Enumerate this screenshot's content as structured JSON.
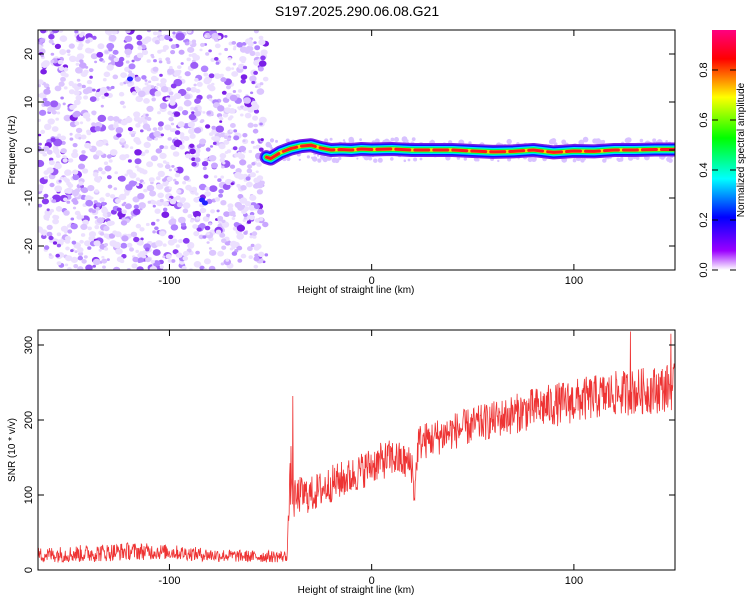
{
  "chart_data": [
    {
      "type": "heatmap",
      "title": "S197.2025.290.06.08.G21",
      "xlabel": "Height of straight line (km)",
      "ylabel": "Frequency (Hz)",
      "xlim": [
        -165,
        150
      ],
      "ylim": [
        -25,
        25
      ],
      "xticks": [
        -100,
        0,
        100
      ],
      "yticks": [
        -20,
        -10,
        0,
        10,
        20
      ],
      "noise_region_x": [
        -165,
        -52
      ],
      "signal_track": {
        "x": [
          -52,
          -50,
          -45,
          -40,
          -35,
          -30,
          -25,
          -20,
          -15,
          -10,
          -5,
          0,
          10,
          20,
          30,
          40,
          50,
          60,
          70,
          80,
          90,
          100,
          110,
          120,
          130,
          140,
          150
        ],
        "freq": [
          -1.5,
          -1.8,
          -0.5,
          0.3,
          0.8,
          1.0,
          0.4,
          0.0,
          0.1,
          0.0,
          0.2,
          0.1,
          0.2,
          0.0,
          0.0,
          0.0,
          -0.2,
          -0.4,
          -0.3,
          0.0,
          -0.5,
          -0.2,
          -0.3,
          0.0,
          0.0,
          0.1,
          0.1
        ]
      },
      "colorbar": {
        "label": "Normalized spectral amplitude",
        "ticks": [
          0.0,
          0.2,
          0.4,
          0.6,
          0.8
        ],
        "tick_labels": [
          "0.0",
          "0.2",
          "0.4",
          "0.6",
          "0.8"
        ],
        "range": [
          0,
          0.96
        ],
        "colors": [
          "#ffffff",
          "#9b00ff",
          "#0000ff",
          "#00ffff",
          "#00ff00",
          "#ffff00",
          "#ff0000",
          "#ff0080"
        ]
      }
    },
    {
      "type": "line",
      "xlabel": "Height of straight line (km)",
      "ylabel": "SNR (10 * v/v)",
      "xlim": [
        -165,
        150
      ],
      "ylim": [
        0,
        320
      ],
      "xticks": [
        -100,
        0,
        100
      ],
      "yticks": [
        0,
        100,
        200,
        300
      ],
      "color": "#ee3333",
      "series_profile": {
        "x": [
          -165,
          -140,
          -120,
          -100,
          -80,
          -60,
          -45,
          -42,
          -40,
          -38,
          -36,
          -30,
          -20,
          -10,
          0,
          10,
          20,
          21,
          23,
          30,
          40,
          60,
          80,
          100,
          120,
          140,
          150
        ],
        "mean": [
          20,
          22,
          25,
          24,
          20,
          18,
          18,
          18,
          130,
          90,
          100,
          100,
          115,
          125,
          140,
          150,
          140,
          95,
          170,
          175,
          185,
          200,
          215,
          225,
          235,
          240,
          245
        ],
        "jitter": [
          10,
          12,
          12,
          10,
          9,
          8,
          8,
          8,
          40,
          30,
          25,
          25,
          25,
          25,
          25,
          25,
          25,
          15,
          25,
          25,
          25,
          25,
          28,
          30,
          30,
          32,
          32
        ]
      },
      "spikes": [
        {
          "x": -39,
          "y": 232
        },
        {
          "x": 21,
          "y": 95
        },
        {
          "x": 128,
          "y": 318
        },
        {
          "x": 148,
          "y": 315
        }
      ]
    }
  ]
}
